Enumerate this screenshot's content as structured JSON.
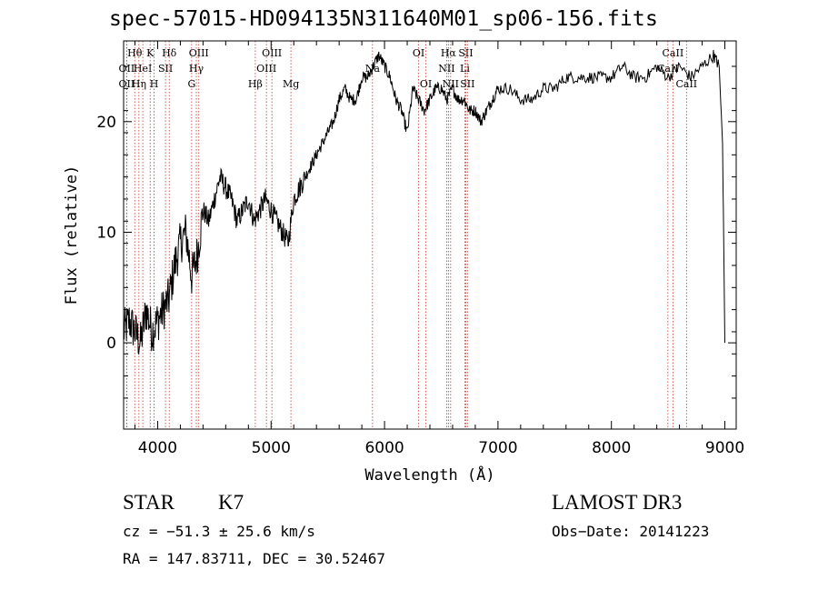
{
  "chart_data": {
    "type": "line",
    "title": "spec-57015-HD094135N311640M01_sp06-156.fits",
    "xlabel": "Wavelength (Å)",
    "ylabel": "Flux (relative)",
    "xlim": [
      3700,
      9100
    ],
    "ylim": [
      -7.8,
      27.3
    ],
    "xticks": [
      4000,
      5000,
      6000,
      7000,
      8000,
      9000
    ],
    "yticks": [
      0,
      10,
      20
    ],
    "series": [
      {
        "name": "flux",
        "x": [
          3700,
          3750,
          3800,
          3850,
          3900,
          3950,
          4000,
          4050,
          4100,
          4150,
          4200,
          4250,
          4300,
          4350,
          4400,
          4450,
          4500,
          4550,
          4600,
          4650,
          4700,
          4750,
          4800,
          4850,
          4900,
          4950,
          5000,
          5050,
          5100,
          5150,
          5200,
          5250,
          5300,
          5350,
          5400,
          5450,
          5500,
          5550,
          5600,
          5650,
          5700,
          5750,
          5800,
          5850,
          5900,
          5950,
          6000,
          6050,
          6100,
          6150,
          6200,
          6250,
          6300,
          6350,
          6400,
          6450,
          6500,
          6550,
          6600,
          6650,
          6700,
          6750,
          6800,
          6850,
          6900,
          6950,
          7000,
          7100,
          7200,
          7300,
          7400,
          7500,
          7600,
          7700,
          7800,
          7900,
          8000,
          8100,
          8200,
          8300,
          8400,
          8500,
          8600,
          8700,
          8800,
          8900,
          8950,
          8980,
          9000
        ],
        "y": [
          1,
          2,
          1,
          0,
          3,
          1,
          2,
          3,
          4,
          7,
          9,
          10,
          6,
          8,
          12,
          11,
          13,
          15,
          14,
          13,
          11,
          12,
          13,
          11,
          12,
          13,
          12,
          11,
          10,
          9,
          13,
          14,
          15,
          16,
          17,
          18,
          19,
          20,
          22,
          23,
          22,
          22,
          24,
          24,
          25,
          26,
          25,
          24,
          22,
          21,
          19,
          23,
          22,
          21,
          22,
          23,
          23,
          22,
          23,
          22,
          22,
          21,
          21,
          20,
          21,
          22,
          23,
          23,
          22,
          22,
          23,
          23,
          24,
          24,
          24,
          24,
          24,
          25,
          24,
          24,
          25,
          24,
          25,
          24,
          25,
          26,
          25,
          18,
          0
        ]
      }
    ],
    "lines": [
      {
        "wl": 3798,
        "label": "Hθ",
        "row": 0
      },
      {
        "wl": 3727,
        "label": "OII",
        "row": 1
      },
      {
        "wl": 3727,
        "label": "OII",
        "row": 2
      },
      {
        "wl": 3835,
        "label": "Hη",
        "row": 2
      },
      {
        "wl": 3869,
        "label": "HeI",
        "row": 1
      },
      {
        "wl": 3934,
        "label": "K",
        "row": 0
      },
      {
        "wl": 3969,
        "label": "H",
        "row": 2
      },
      {
        "wl": 4069,
        "label": "SII",
        "row": 1
      },
      {
        "wl": 4102,
        "label": "Hδ",
        "row": 0
      },
      {
        "wl": 4300,
        "label": "G",
        "row": 2
      },
      {
        "wl": 4341,
        "label": "Hγ",
        "row": 1
      },
      {
        "wl": 4363,
        "label": "OIII",
        "row": 0
      },
      {
        "wl": 4861,
        "label": "Hβ",
        "row": 2
      },
      {
        "wl": 4959,
        "label": "OIII",
        "row": 1
      },
      {
        "wl": 5007,
        "label": "OIII",
        "row": 0
      },
      {
        "wl": 5175,
        "label": "Mg",
        "row": 2
      },
      {
        "wl": 5894,
        "label": "Na",
        "row": 1
      },
      {
        "wl": 6300,
        "label": "OI",
        "row": 0
      },
      {
        "wl": 6364,
        "label": "OI",
        "row": 2
      },
      {
        "wl": 6548,
        "label": "NII",
        "row": 1
      },
      {
        "wl": 6563,
        "label": "Hα",
        "row": 0
      },
      {
        "wl": 6583,
        "label": "NII",
        "row": 2
      },
      {
        "wl": 6708,
        "label": "Li",
        "row": 1
      },
      {
        "wl": 6716,
        "label": "SII",
        "row": 0
      },
      {
        "wl": 6731,
        "label": "SII",
        "row": 2
      },
      {
        "wl": 8498,
        "label": "CaII",
        "row": 1
      },
      {
        "wl": 8542,
        "label": "CaII",
        "row": 0
      },
      {
        "wl": 8662,
        "label": "CaII",
        "row": 2
      }
    ]
  },
  "info": {
    "class": "STAR",
    "subclass": "K7",
    "survey": "LAMOST DR3",
    "cz": "cz = −51.3 ± 25.6 km/s",
    "obsdate": "Obs−Date: 20141223",
    "radec": "RA = 147.83711, DEC =  30.52467"
  }
}
